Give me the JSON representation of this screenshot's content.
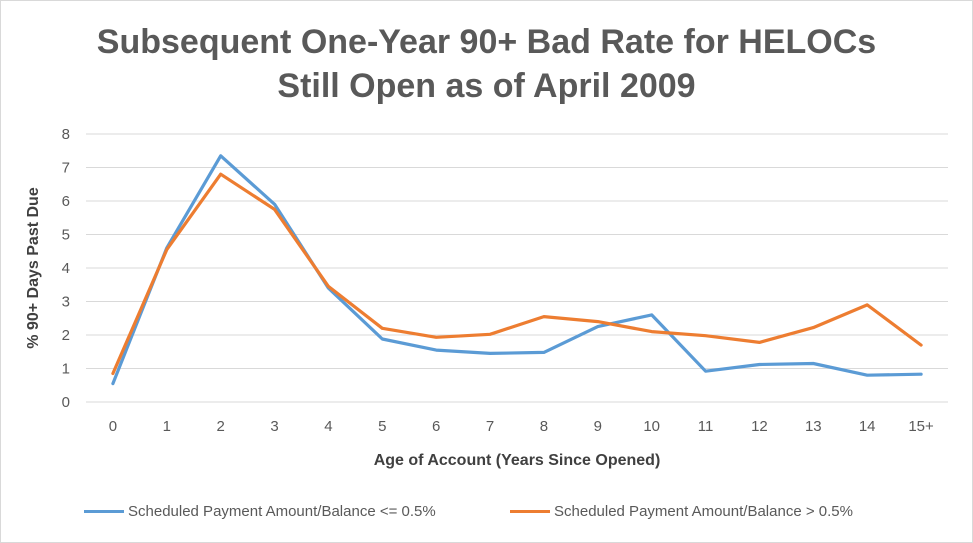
{
  "chart_data": {
    "type": "line",
    "title_lines": [
      "Subsequent One-Year 90+ Bad Rate for HELOCs",
      "Still Open as of April 2009"
    ],
    "xlabel": "Age of Account (Years Since Opened)",
    "ylabel": "% 90+ Days Past Due",
    "categories": [
      "0",
      "1",
      "2",
      "3",
      "4",
      "5",
      "6",
      "7",
      "8",
      "9",
      "10",
      "11",
      "12",
      "13",
      "14",
      "15+"
    ],
    "ylim": [
      0,
      8
    ],
    "yticks": [
      0,
      1,
      2,
      3,
      4,
      5,
      6,
      7,
      8
    ],
    "grid": "horizontal",
    "legend_position": "bottom",
    "series": [
      {
        "name": "Scheduled Payment Amount/Balance <= 0.5%",
        "color": "#5b9bd5",
        "values": [
          0.55,
          4.6,
          7.35,
          5.9,
          3.4,
          1.88,
          1.55,
          1.45,
          1.48,
          2.25,
          2.6,
          0.92,
          1.12,
          1.15,
          0.8,
          0.83
        ]
      },
      {
        "name": "Scheduled Payment Amount/Balance > 0.5%",
        "color": "#ed7d31",
        "values": [
          0.85,
          4.55,
          6.8,
          5.75,
          3.45,
          2.2,
          1.93,
          2.02,
          2.55,
          2.4,
          2.1,
          1.98,
          1.78,
          2.22,
          2.9,
          1.7
        ]
      }
    ]
  }
}
